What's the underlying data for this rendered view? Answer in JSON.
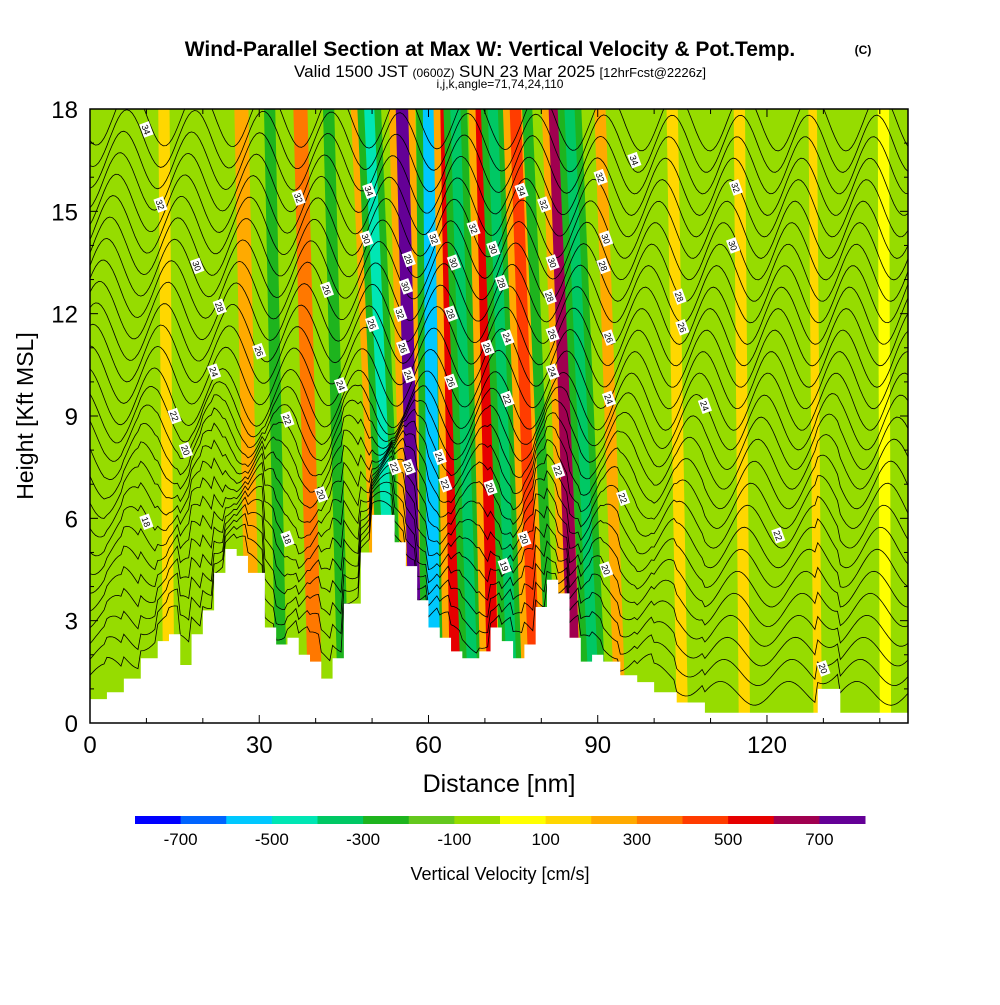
{
  "header": {
    "title": "Wind-Parallel Section at Max W: Vertical Velocity & Pot.Temp.",
    "copyright": "(C)",
    "valid_prefix": "Valid 1500 JST",
    "valid_zulu": "(0600Z)",
    "valid_date": "SUN 23 Mar 2025",
    "forecast": "[12hrFcst@2226z]",
    "indices": "i,j,k,angle=71,74,24,110"
  },
  "colors": {
    "terrain": "#ffffff",
    "contour": "#000000",
    "frame": "#000000",
    "levels": [
      "#0000ff",
      "#0064ff",
      "#00c8ff",
      "#00e6b4",
      "#00c864",
      "#1eb41e",
      "#64c81e",
      "#96dc00",
      "#ffff00",
      "#ffd700",
      "#ffaa00",
      "#ff7800",
      "#ff3c00",
      "#e60000",
      "#a00050",
      "#640096"
    ]
  },
  "chart_data": {
    "type": "heatmap",
    "title": "Wind-Parallel Section at Max W: Vertical Velocity & Pot.Temp.",
    "xlabel": "Distance [nm]",
    "ylabel": "Height [Kft MSL]",
    "xlim": [
      0,
      145
    ],
    "ylim": [
      0,
      18
    ],
    "x_ticks": [
      0,
      30,
      60,
      90,
      120
    ],
    "y_ticks": [
      0,
      3,
      6,
      9,
      12,
      15,
      18
    ],
    "colorbar": {
      "label": "Vertical Velocity [cm/s]",
      "min": -800,
      "max": 800,
      "step": 100,
      "tick_values": [
        -700,
        -500,
        -300,
        -100,
        100,
        300,
        500,
        700
      ]
    },
    "contour_label_values": [
      18,
      20,
      22,
      24,
      26,
      28,
      30,
      32,
      34
    ],
    "terrain_profile": [
      {
        "x": 0,
        "y": 0.7
      },
      {
        "x": 3,
        "y": 0.9
      },
      {
        "x": 6,
        "y": 1.3
      },
      {
        "x": 9,
        "y": 1.9
      },
      {
        "x": 12,
        "y": 2.4
      },
      {
        "x": 14,
        "y": 2.6
      },
      {
        "x": 16,
        "y": 1.7
      },
      {
        "x": 18,
        "y": 2.6
      },
      {
        "x": 20,
        "y": 3.3
      },
      {
        "x": 22,
        "y": 4.4
      },
      {
        "x": 24,
        "y": 5.1
      },
      {
        "x": 26,
        "y": 4.9
      },
      {
        "x": 28,
        "y": 4.4
      },
      {
        "x": 31,
        "y": 2.8
      },
      {
        "x": 33,
        "y": 2.3
      },
      {
        "x": 35,
        "y": 2.5
      },
      {
        "x": 37,
        "y": 2.0
      },
      {
        "x": 39,
        "y": 1.8
      },
      {
        "x": 41,
        "y": 1.3
      },
      {
        "x": 43,
        "y": 1.9
      },
      {
        "x": 45,
        "y": 3.5
      },
      {
        "x": 48,
        "y": 5.0
      },
      {
        "x": 50,
        "y": 6.1
      },
      {
        "x": 52,
        "y": 6.1
      },
      {
        "x": 54,
        "y": 5.3
      },
      {
        "x": 56,
        "y": 4.6
      },
      {
        "x": 58,
        "y": 3.6
      },
      {
        "x": 60,
        "y": 2.8
      },
      {
        "x": 62,
        "y": 2.5
      },
      {
        "x": 64,
        "y": 2.1
      },
      {
        "x": 66,
        "y": 1.9
      },
      {
        "x": 69,
        "y": 2.1
      },
      {
        "x": 71,
        "y": 2.8
      },
      {
        "x": 73,
        "y": 2.4
      },
      {
        "x": 75,
        "y": 1.9
      },
      {
        "x": 77,
        "y": 2.3
      },
      {
        "x": 79,
        "y": 3.4
      },
      {
        "x": 81,
        "y": 4.2
      },
      {
        "x": 83,
        "y": 3.8
      },
      {
        "x": 85,
        "y": 2.5
      },
      {
        "x": 87,
        "y": 1.8
      },
      {
        "x": 89,
        "y": 2.0
      },
      {
        "x": 91,
        "y": 1.8
      },
      {
        "x": 94,
        "y": 1.4
      },
      {
        "x": 97,
        "y": 1.2
      },
      {
        "x": 100,
        "y": 0.9
      },
      {
        "x": 104,
        "y": 0.6
      },
      {
        "x": 109,
        "y": 0.3
      },
      {
        "x": 114,
        "y": 0.3
      },
      {
        "x": 122,
        "y": 0.3
      },
      {
        "x": 127,
        "y": 0.3
      },
      {
        "x": 129,
        "y": 1.0
      },
      {
        "x": 131,
        "y": 1.0
      },
      {
        "x": 133,
        "y": 0.3
      },
      {
        "x": 145,
        "y": 0.3
      }
    ],
    "vertical_velocity_bands": [
      {
        "x": 14,
        "w": 2.0,
        "tilt": 0.05,
        "v": 150
      },
      {
        "x": 19,
        "w": 3.0,
        "tilt": 0.05,
        "v": -50
      },
      {
        "x": 29,
        "w": 2.5,
        "tilt": 0.12,
        "v": 250
      },
      {
        "x": 34,
        "w": 2.0,
        "tilt": 0.12,
        "v": -250
      },
      {
        "x": 40,
        "w": 2.5,
        "tilt": 0.15,
        "v": 300
      },
      {
        "x": 45,
        "w": 2.0,
        "tilt": 0.15,
        "v": -300
      },
      {
        "x": 52,
        "w": 2.5,
        "tilt": 0.25,
        "v": 250
      },
      {
        "x": 54,
        "w": 1.8,
        "tilt": 0.25,
        "v": -450
      },
      {
        "x": 58,
        "w": 2.2,
        "tilt": 0.15,
        "v": 750
      },
      {
        "x": 61,
        "w": 2.2,
        "tilt": 0.05,
        "v": -600
      },
      {
        "x": 65,
        "w": 2.2,
        "tilt": 0.1,
        "v": 550
      },
      {
        "x": 68,
        "w": 1.8,
        "tilt": 0.18,
        "v": -350
      },
      {
        "x": 71.5,
        "w": 2.0,
        "tilt": 0.12,
        "v": 550
      },
      {
        "x": 75,
        "w": 1.8,
        "tilt": 0.2,
        "v": -350
      },
      {
        "x": 79,
        "w": 2.0,
        "tilt": 0.2,
        "v": 400
      },
      {
        "x": 82,
        "w": 1.8,
        "tilt": 0.25,
        "v": -300
      },
      {
        "x": 86,
        "w": 2.2,
        "tilt": 0.2,
        "v": 600
      },
      {
        "x": 89.5,
        "w": 1.8,
        "tilt": 0.25,
        "v": -400
      },
      {
        "x": 94,
        "w": 2.0,
        "tilt": 0.2,
        "v": 200
      },
      {
        "x": 100,
        "w": 3.0,
        "tilt": 0.12,
        "v": -100
      },
      {
        "x": 105,
        "w": 2.0,
        "tilt": 0.1,
        "v": 150
      },
      {
        "x": 110,
        "w": 3.0,
        "tilt": 0.05,
        "v": -80
      },
      {
        "x": 116,
        "w": 2.0,
        "tilt": 0.05,
        "v": 120
      },
      {
        "x": 124,
        "w": 3.0,
        "tilt": 0.02,
        "v": -100
      },
      {
        "x": 129,
        "w": 1.5,
        "tilt": 0.05,
        "v": 150
      },
      {
        "x": 135,
        "w": 3.0,
        "tilt": 0.05,
        "v": -80
      },
      {
        "x": 141,
        "w": 2.0,
        "tilt": 0.02,
        "v": 80
      }
    ],
    "contour_labels": [
      {
        "x": 10,
        "y": 17.4,
        "value": 34
      },
      {
        "x": 12.5,
        "y": 15.2,
        "value": 32
      },
      {
        "x": 37,
        "y": 15.4,
        "value": 32
      },
      {
        "x": 19,
        "y": 13.4,
        "value": 30
      },
      {
        "x": 23,
        "y": 12.2,
        "value": 28
      },
      {
        "x": 30,
        "y": 10.9,
        "value": 26
      },
      {
        "x": 22,
        "y": 10.3,
        "value": 24
      },
      {
        "x": 15,
        "y": 9.0,
        "value": 22
      },
      {
        "x": 17,
        "y": 8.0,
        "value": 20
      },
      {
        "x": 10,
        "y": 5.9,
        "value": 18
      },
      {
        "x": 35,
        "y": 5.4,
        "value": 18
      },
      {
        "x": 35,
        "y": 8.9,
        "value": 22
      },
      {
        "x": 41,
        "y": 6.7,
        "value": 20
      },
      {
        "x": 42,
        "y": 12.7,
        "value": 26
      },
      {
        "x": 44.5,
        "y": 9.9,
        "value": 24
      },
      {
        "x": 49,
        "y": 14.2,
        "value": 30
      },
      {
        "x": 50,
        "y": 11.7,
        "value": 26
      },
      {
        "x": 49.5,
        "y": 15.6,
        "value": 34
      },
      {
        "x": 54,
        "y": 7.5,
        "value": 22
      },
      {
        "x": 55,
        "y": 12.0,
        "value": 32
      },
      {
        "x": 55.5,
        "y": 11.0,
        "value": 26
      },
      {
        "x": 56,
        "y": 12.8,
        "value": 30
      },
      {
        "x": 56.5,
        "y": 10.2,
        "value": 24
      },
      {
        "x": 56.5,
        "y": 13.6,
        "value": 28
      },
      {
        "x": 56.5,
        "y": 7.5,
        "value": 20
      },
      {
        "x": 61,
        "y": 14.2,
        "value": 32
      },
      {
        "x": 62,
        "y": 7.8,
        "value": 24
      },
      {
        "x": 63,
        "y": 7.0,
        "value": 22
      },
      {
        "x": 64.5,
        "y": 13.5,
        "value": 30
      },
      {
        "x": 64,
        "y": 12.0,
        "value": 28
      },
      {
        "x": 64,
        "y": 10.0,
        "value": 26
      },
      {
        "x": 68,
        "y": 14.5,
        "value": 32
      },
      {
        "x": 71.5,
        "y": 13.9,
        "value": 30
      },
      {
        "x": 73,
        "y": 12.9,
        "value": 28
      },
      {
        "x": 70.5,
        "y": 11.0,
        "value": 26
      },
      {
        "x": 74,
        "y": 11.3,
        "value": 24
      },
      {
        "x": 74,
        "y": 9.5,
        "value": 22
      },
      {
        "x": 71,
        "y": 6.9,
        "value": 20
      },
      {
        "x": 73.5,
        "y": 4.6,
        "value": 19
      },
      {
        "x": 76.5,
        "y": 15.6,
        "value": 34
      },
      {
        "x": 80.5,
        "y": 15.2,
        "value": 32
      },
      {
        "x": 82,
        "y": 13.5,
        "value": 30
      },
      {
        "x": 81.5,
        "y": 12.5,
        "value": 28
      },
      {
        "x": 82,
        "y": 11.4,
        "value": 26
      },
      {
        "x": 82,
        "y": 10.3,
        "value": 24
      },
      {
        "x": 83,
        "y": 7.4,
        "value": 22
      },
      {
        "x": 77,
        "y": 5.4,
        "value": 20
      },
      {
        "x": 90.5,
        "y": 16.0,
        "value": 32
      },
      {
        "x": 91.5,
        "y": 14.2,
        "value": 30
      },
      {
        "x": 91,
        "y": 13.4,
        "value": 28
      },
      {
        "x": 92,
        "y": 11.3,
        "value": 26
      },
      {
        "x": 92,
        "y": 9.5,
        "value": 24
      },
      {
        "x": 94.5,
        "y": 6.6,
        "value": 22
      },
      {
        "x": 91.5,
        "y": 4.5,
        "value": 20
      },
      {
        "x": 96.5,
        "y": 16.5,
        "value": 34
      },
      {
        "x": 114.5,
        "y": 15.7,
        "value": 32
      },
      {
        "x": 114,
        "y": 14.0,
        "value": 30
      },
      {
        "x": 104.5,
        "y": 12.5,
        "value": 28
      },
      {
        "x": 105,
        "y": 11.6,
        "value": 26
      },
      {
        "x": 109,
        "y": 9.3,
        "value": 24
      },
      {
        "x": 122,
        "y": 5.5,
        "value": 22
      },
      {
        "x": 130,
        "y": 1.6,
        "value": 20
      }
    ]
  }
}
